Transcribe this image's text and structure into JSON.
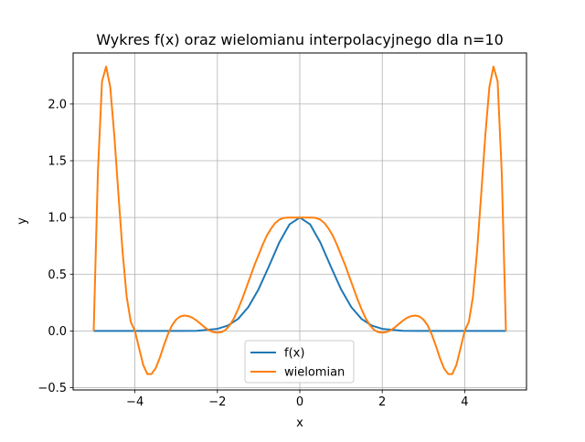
{
  "chart_data": {
    "type": "line",
    "title": "Wykres f(x) oraz wielomianu interpolacyjnego dla n=10",
    "xlabel": "x",
    "ylabel": "y",
    "xlim": [
      -5.5,
      5.5
    ],
    "ylim": [
      -0.52,
      2.45
    ],
    "xticks": [
      -4,
      -2,
      0,
      2,
      4
    ],
    "xtick_labels": [
      "−4",
      "−2",
      "0",
      "2",
      "4"
    ],
    "yticks": [
      -0.5,
      0.0,
      0.5,
      1.0,
      1.5,
      2.0
    ],
    "ytick_labels": [
      "−0.5",
      "0.0",
      "0.5",
      "1.0",
      "1.5",
      "2.0"
    ],
    "grid": true,
    "legend_position": "lower-center",
    "series": [
      {
        "name": "f(x)",
        "color": "#1f77b4",
        "x": [
          -5,
          -4.5,
          -4,
          -3.5,
          -3,
          -2.5,
          -2,
          -1.75,
          -1.5,
          -1.25,
          -1,
          -0.75,
          -0.5,
          -0.25,
          0,
          0.25,
          0.5,
          0.75,
          1,
          1.25,
          1.5,
          1.75,
          2,
          2.5,
          3,
          3.5,
          4,
          4.5,
          5
        ],
        "y": [
          0.0,
          0.0,
          0.0,
          0.0,
          0.0001,
          0.0019,
          0.0183,
          0.0468,
          0.1054,
          0.2096,
          0.3679,
          0.5698,
          0.7788,
          0.9394,
          1.0,
          0.9394,
          0.7788,
          0.5698,
          0.3679,
          0.2096,
          0.1054,
          0.0468,
          0.0183,
          0.0019,
          0.0001,
          0.0,
          0.0,
          0.0,
          0.0
        ]
      },
      {
        "name": "wielomian",
        "color": "#ff7f0e",
        "x": [
          -5,
          -4.9,
          -4.8,
          -4.7,
          -4.6,
          -4.5,
          -4.4,
          -4.3,
          -4.2,
          -4.1,
          -4.0,
          -3.9,
          -3.8,
          -3.7,
          -3.6,
          -3.5,
          -3.4,
          -3.3,
          -3.2,
          -3.1,
          -3.0,
          -2.9,
          -2.8,
          -2.7,
          -2.6,
          -2.5,
          -2.4,
          -2.3,
          -2.2,
          -2.1,
          -2.0,
          -1.9,
          -1.8,
          -1.7,
          -1.6,
          -1.5,
          -1.4,
          -1.3,
          -1.2,
          -1.1,
          -1.0,
          -0.9,
          -0.8,
          -0.7,
          -0.6,
          -0.5,
          -0.4,
          -0.3,
          -0.2,
          -0.1,
          0.0,
          0.1,
          0.2,
          0.3,
          0.4,
          0.5,
          0.6,
          0.7,
          0.8,
          0.9,
          1.0,
          1.1,
          1.2,
          1.3,
          1.4,
          1.5,
          1.6,
          1.7,
          1.8,
          1.9,
          2.0,
          2.1,
          2.2,
          2.3,
          2.4,
          2.5,
          2.6,
          2.7,
          2.8,
          2.9,
          3.0,
          3.1,
          3.2,
          3.3,
          3.4,
          3.5,
          3.6,
          3.7,
          3.8,
          3.9,
          4.0,
          4.1,
          4.2,
          4.3,
          4.4,
          4.5,
          4.6,
          4.7,
          4.8,
          4.9,
          5.0
        ],
        "y": [
          0.0,
          1.4,
          2.2,
          2.33,
          2.15,
          1.72,
          1.2,
          0.7,
          0.3,
          0.08,
          0.0,
          -0.15,
          -0.3,
          -0.38,
          -0.38,
          -0.33,
          -0.24,
          -0.13,
          -0.03,
          0.05,
          0.1,
          0.128,
          0.136,
          0.13,
          0.115,
          0.09,
          0.06,
          0.03,
          0.005,
          -0.01,
          -0.015,
          -0.01,
          0.01,
          0.05,
          0.11,
          0.19,
          0.28,
          0.38,
          0.48,
          0.58,
          0.67,
          0.76,
          0.84,
          0.9,
          0.95,
          0.98,
          0.995,
          1.0,
          1.0,
          1.0,
          1.0,
          1.0,
          1.0,
          1.0,
          0.995,
          0.98,
          0.95,
          0.9,
          0.84,
          0.76,
          0.67,
          0.58,
          0.48,
          0.38,
          0.28,
          0.19,
          0.11,
          0.05,
          0.01,
          -0.01,
          -0.015,
          -0.01,
          0.005,
          0.03,
          0.06,
          0.09,
          0.115,
          0.13,
          0.136,
          0.128,
          0.1,
          0.05,
          -0.03,
          -0.13,
          -0.24,
          -0.33,
          -0.38,
          -0.38,
          -0.3,
          -0.15,
          0.0,
          0.08,
          0.3,
          0.7,
          1.2,
          1.72,
          2.15,
          2.33,
          2.2,
          1.4,
          0.0
        ]
      }
    ]
  }
}
